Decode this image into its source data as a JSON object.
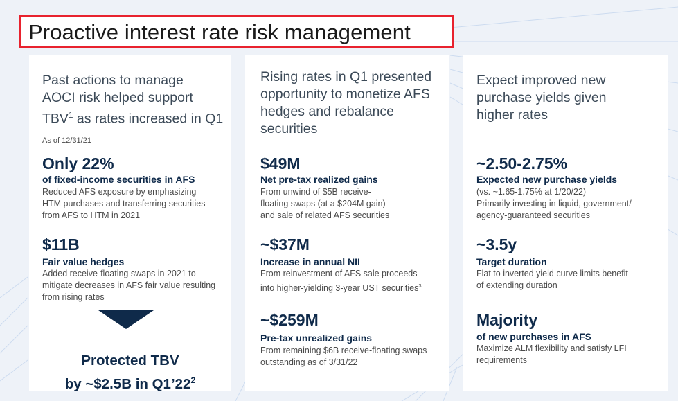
{
  "title": "Proactive interest rate risk management",
  "col1": {
    "head1": "Past actions to manage",
    "head2": "AOCI risk helped support",
    "head3a": "TBV",
    "head3sup": "1",
    "head3b": " as rates increased in Q1",
    "as_of": "As of 12/31/21",
    "m1": {
      "big": "Only 22%",
      "sub": "of fixed-income securities in AFS",
      "d1": "Reduced AFS exposure by emphasizing",
      "d2": "HTM purchases and transferring securities",
      "d3": "from AFS to HTM in 2021"
    },
    "m2": {
      "big": "$11B",
      "sub": "Fair value hedges",
      "d1": "Added receive-floating swaps in 2021 to",
      "d2": "mitigate decreases in AFS fair value resulting",
      "d3": "from rising rates"
    },
    "protected1": "Protected TBV",
    "protected2": "by ~$2.5B in Q1’22",
    "protected_sup": "2"
  },
  "col2": {
    "head1": "Rising rates in Q1 presented",
    "head2": "opportunity to monetize AFS",
    "head3": "hedges and rebalance",
    "head4": "securities",
    "m1": {
      "big": "$49M",
      "sub": "Net pre-tax realized gains",
      "d1": "From unwind of $5B receive-",
      "d2": "floating swaps (at a $204M gain)",
      "d3": "and sale of related AFS securities"
    },
    "m2": {
      "big": "~$37M",
      "sub": "Increase in annual NII",
      "d1": "From reinvestment of AFS sale proceeds",
      "d2": "into higher-yielding 3-year UST securities",
      "d2sup": "3"
    },
    "m3": {
      "big": "~$259M",
      "sub": "Pre-tax unrealized gains",
      "d1": "From remaining $6B receive-floating swaps",
      "d2": "outstanding as of 3/31/22"
    }
  },
  "col3": {
    "head1": "Expect improved new",
    "head2": "purchase yields given",
    "head3": "higher rates",
    "m1": {
      "big": "~2.50-2.75%",
      "sub": "Expected new purchase yields",
      "d1": "(vs. ~1.65-1.75% at 1/20/22)",
      "d2": "Primarily investing in liquid, government/",
      "d3": "agency-guaranteed securities"
    },
    "m2": {
      "big": "~3.5y",
      "sub": "Target duration",
      "d1": "Flat to inverted yield curve limits benefit",
      "d2": "of extending duration"
    },
    "m3": {
      "big": "Majority",
      "sub": "of new purchases in AFS",
      "d1": "Maximize ALM flexibility and satisfy LFI",
      "d2": "requirements"
    }
  }
}
